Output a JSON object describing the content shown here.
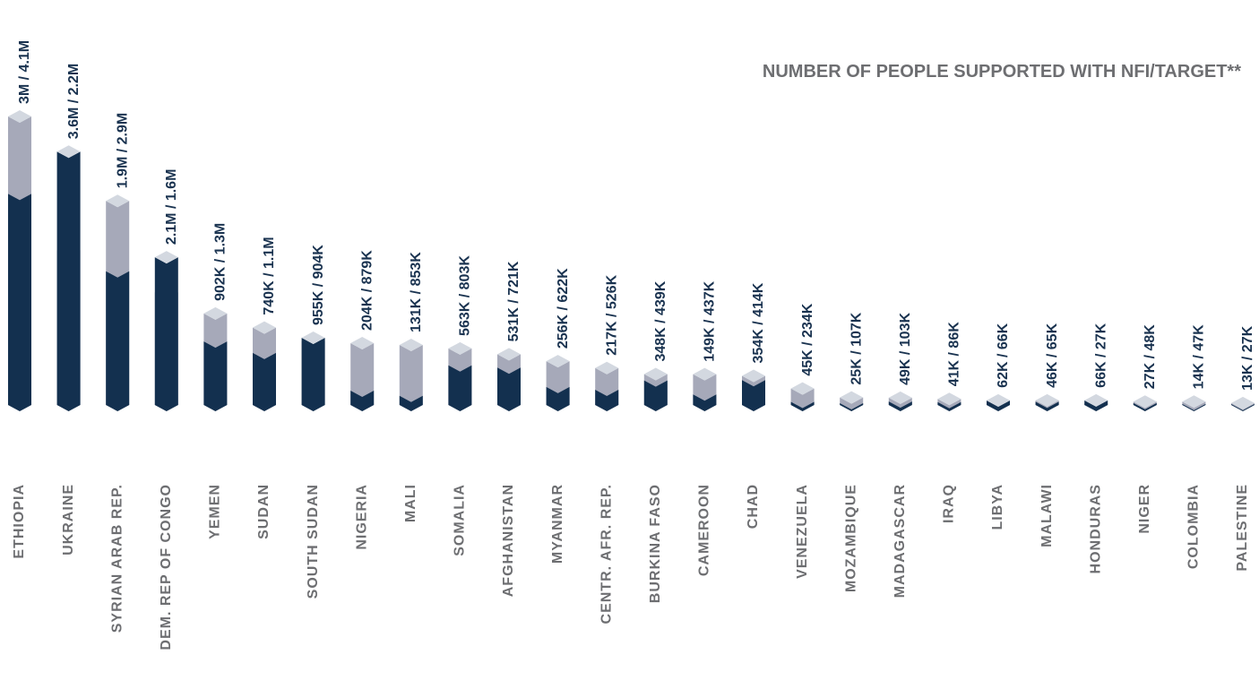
{
  "chart_data": {
    "type": "bar",
    "title": "NUMBER OF PEOPLE SUPPORTED WITH NFI/TARGET**",
    "categories": [
      "ETHIOPIA",
      "UKRAINE",
      "SYRIAN ARAB REP.",
      "DEM. REP OF CONGO",
      "YEMEN",
      "SUDAN",
      "SOUTH SUDAN",
      "NIGERIA",
      "MALI",
      "SOMALIA",
      "AFGHANISTAN",
      "MYANMAR",
      "CENTR. AFR. REP.",
      "BURKINA FASO",
      "CAMEROON",
      "CHAD",
      "VENEZUELA",
      "MOZAMBIQUE",
      "MADAGASCAR",
      "IRAQ",
      "LIBYA",
      "MALAWI",
      "HONDURAS",
      "NIGER",
      "COLOMBIA",
      "PALESTINE"
    ],
    "series": [
      {
        "color": "#13304f",
        "values": [
          3000000,
          3600000,
          1900000,
          2100000,
          902000,
          740000,
          955000,
          204000,
          131000,
          563000,
          531000,
          256000,
          217000,
          348000,
          149000,
          354000,
          45000,
          25000,
          49000,
          41000,
          62000,
          46000,
          66000,
          27000,
          14000,
          13000
        ]
      },
      {
        "color": "#a6a9b9",
        "values": [
          4100000,
          2200000,
          2900000,
          1600000,
          1300000,
          1100000,
          904000,
          879000,
          853000,
          803000,
          721000,
          622000,
          526000,
          439000,
          437000,
          414000,
          234000,
          107000,
          103000,
          86000,
          66000,
          65000,
          27000,
          48000,
          47000,
          27000
        ]
      }
    ],
    "value_labels": [
      "3M / 4.1M",
      "3.6M / 2.2M",
      "1.9M / 2.9M",
      "2.1M / 1.6M",
      "902K / 1.3M",
      "740K / 1.1M",
      "955K / 904K",
      "204K / 879K",
      "131K / 853K",
      "563K / 803K",
      "531K / 721K",
      "256K / 622K",
      "217K / 526K",
      "348K / 439K",
      "149K / 437K",
      "354K / 414K",
      "45K / 234K",
      "25K / 107K",
      "49K / 103K",
      "41K / 86K",
      "62K / 66K",
      "46K / 65K",
      "66K / 27K",
      "27K / 48K",
      "14K / 47K",
      "13K / 27K"
    ],
    "ylim": [
      0,
      4100000
    ]
  }
}
